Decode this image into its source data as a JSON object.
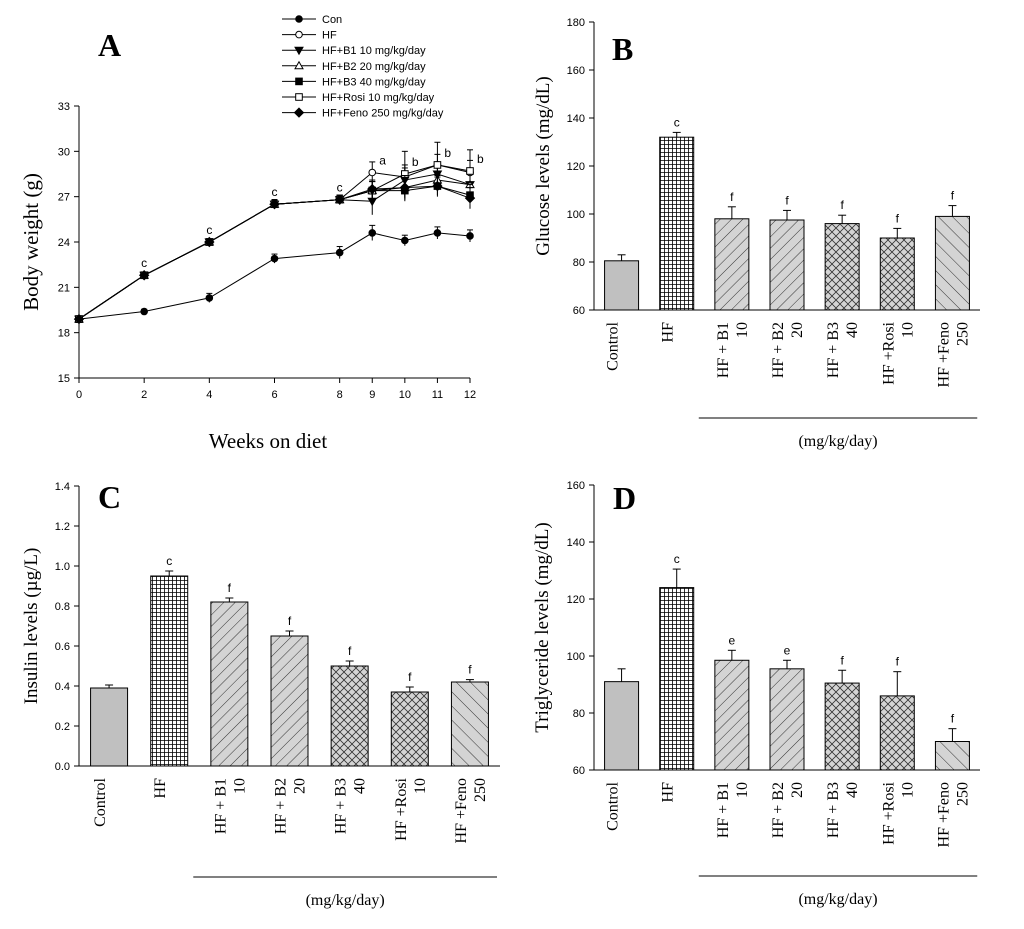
{
  "chart_data": [
    {
      "id": "A",
      "panel_label": "A",
      "type": "line",
      "xlabel": "Weeks on diet",
      "ylabel": "Body weight (g)",
      "xlim": [
        0,
        12
      ],
      "ylim": [
        15,
        33
      ],
      "xticks": [
        0,
        2,
        4,
        6,
        8,
        9,
        10,
        11,
        12
      ],
      "yticks": [
        15,
        18,
        21,
        24,
        27,
        30,
        33
      ],
      "x": [
        0,
        2,
        4,
        6,
        8,
        9,
        10,
        11,
        12
      ],
      "legend": "top-right",
      "series": [
        {
          "name": "Con",
          "marker": "filled-circle",
          "values": [
            18.9,
            19.4,
            20.3,
            22.9,
            23.3,
            24.6,
            24.1,
            24.6,
            24.4
          ],
          "errors": [
            0.1,
            0.15,
            0.3,
            0.3,
            0.4,
            0.5,
            0.35,
            0.4,
            0.4
          ]
        },
        {
          "name": "HF",
          "marker": "open-circle",
          "values": [
            18.9,
            21.8,
            24.0,
            26.5,
            26.8,
            28.6,
            28.3,
            29.1,
            28.6
          ],
          "errors": [
            0.1,
            0.2,
            0.2,
            0.3,
            0.3,
            0.7,
            0.8,
            0.7,
            0.8
          ]
        },
        {
          "name": "HF+B1  10 mg/kg/day",
          "marker": "filled-triangle-down",
          "values": [
            18.9,
            21.8,
            24.0,
            26.5,
            26.8,
            26.7,
            28.1,
            28.5,
            27.8
          ],
          "errors": [
            0.1,
            0.2,
            0.2,
            0.3,
            0.3,
            0.9,
            0.8,
            0.6,
            0.8
          ]
        },
        {
          "name": "HF+B2  20 mg/kg/day",
          "marker": "open-triangle-up",
          "values": [
            18.9,
            21.8,
            24.0,
            26.5,
            26.8,
            27.4,
            27.6,
            28.1,
            27.8
          ],
          "errors": [
            0.1,
            0.2,
            0.2,
            0.3,
            0.3,
            0.6,
            0.7,
            0.6,
            0.7
          ]
        },
        {
          "name": "HF+B3  40 mg/kg/day",
          "marker": "filled-square",
          "values": [
            18.9,
            21.8,
            24.0,
            26.5,
            26.8,
            27.4,
            27.4,
            27.7,
            27.1
          ],
          "errors": [
            0.1,
            0.2,
            0.2,
            0.3,
            0.3,
            0.6,
            0.7,
            0.6,
            0.7
          ]
        },
        {
          "name": "HF+Rosi 10 mg/kg/day",
          "marker": "open-square",
          "values": [
            18.9,
            21.8,
            24.0,
            26.5,
            26.8,
            27.4,
            28.5,
            29.1,
            28.7
          ],
          "errors": [
            0.1,
            0.2,
            0.2,
            0.3,
            0.3,
            0.6,
            1.5,
            1.5,
            1.4
          ]
        },
        {
          "name": "HF+Feno 250 mg/kg/day",
          "marker": "filled-diamond",
          "values": [
            18.9,
            21.8,
            24.0,
            26.5,
            26.8,
            27.5,
            27.6,
            27.7,
            26.9
          ],
          "errors": [
            0.1,
            0.2,
            0.2,
            0.3,
            0.3,
            0.6,
            0.8,
            0.7,
            0.7
          ]
        }
      ],
      "annotations": [
        {
          "x": 2,
          "y": 21.8,
          "text": "c"
        },
        {
          "x": 4,
          "y": 24.0,
          "text": "c"
        },
        {
          "x": 6,
          "y": 26.5,
          "text": "c"
        },
        {
          "x": 8,
          "y": 26.8,
          "text": "c"
        },
        {
          "x": 9,
          "y": 28.6,
          "text": "a"
        },
        {
          "x": 10,
          "y": 28.5,
          "text": "b"
        },
        {
          "x": 11,
          "y": 29.1,
          "text": "b"
        },
        {
          "x": 12,
          "y": 28.7,
          "text": "b"
        }
      ]
    },
    {
      "id": "B",
      "panel_label": "B",
      "type": "bar",
      "ylabel": "Glucose levels (mg/dL)",
      "ylim": [
        60,
        180
      ],
      "yticks": [
        60,
        80,
        100,
        120,
        140,
        160,
        180
      ],
      "categories": [
        [
          "Control"
        ],
        [
          "HF"
        ],
        [
          "HF + B1",
          "10"
        ],
        [
          "HF + B2",
          "20"
        ],
        [
          "HF + B3",
          "40"
        ],
        [
          "HF +Rosi",
          "10"
        ],
        [
          "HF +Feno",
          "250"
        ]
      ],
      "values": [
        80.5,
        132,
        98,
        97.5,
        96,
        90,
        99
      ],
      "errors": [
        2.5,
        2,
        5,
        4,
        3.5,
        4,
        4.5
      ],
      "significance": [
        "",
        "c",
        "f",
        "f",
        "f",
        "f",
        "f"
      ],
      "patterns": [
        "solid",
        "grid",
        "diag-right",
        "diag-right",
        "cross",
        "cross",
        "diag-left"
      ],
      "group_caption": "(mg/kg/day)"
    },
    {
      "id": "C",
      "panel_label": "C",
      "type": "bar",
      "ylabel": "Insulin levels (µg/L)",
      "ylim": [
        0.0,
        1.4
      ],
      "yticks": [
        "0.0",
        "0.2",
        "0.4",
        "0.6",
        "0.8",
        "1.0",
        "1.2",
        "1.4"
      ],
      "categories": [
        [
          "Control"
        ],
        [
          "HF"
        ],
        [
          "HF + B1",
          "10"
        ],
        [
          "HF + B2",
          "20"
        ],
        [
          "HF + B3",
          "40"
        ],
        [
          "HF +Rosi",
          "10"
        ],
        [
          "HF +Feno",
          "250"
        ]
      ],
      "values": [
        0.39,
        0.95,
        0.82,
        0.65,
        0.5,
        0.37,
        0.42
      ],
      "errors": [
        0.015,
        0.025,
        0.02,
        0.025,
        0.025,
        0.025,
        0.012
      ],
      "significance": [
        "",
        "c",
        "f",
        "f",
        "f",
        "f",
        "f"
      ],
      "patterns": [
        "solid",
        "grid",
        "diag-right",
        "diag-right",
        "cross",
        "cross",
        "diag-left"
      ],
      "group_caption": "(mg/kg/day)"
    },
    {
      "id": "D",
      "panel_label": "D",
      "type": "bar",
      "ylabel": "Triglyceride levels (mg/dL)",
      "ylim": [
        60,
        160
      ],
      "yticks": [
        60,
        80,
        100,
        120,
        140,
        160
      ],
      "categories": [
        [
          "Control"
        ],
        [
          "HF"
        ],
        [
          "HF + B1",
          "10"
        ],
        [
          "HF + B2",
          "20"
        ],
        [
          "HF + B3",
          "40"
        ],
        [
          "HF +Rosi",
          "10"
        ],
        [
          "HF +Feno",
          "250"
        ]
      ],
      "values": [
        91,
        124,
        98.5,
        95.5,
        90.5,
        86,
        70
      ],
      "errors": [
        4.5,
        6.5,
        3.5,
        3,
        4.5,
        8.5,
        4.5
      ],
      "significance": [
        "",
        "c",
        "e",
        "e",
        "f",
        "f",
        "f"
      ],
      "patterns": [
        "solid",
        "grid",
        "diag-right",
        "diag-right",
        "cross",
        "cross",
        "diag-left"
      ],
      "group_caption": "(mg/kg/day)"
    }
  ]
}
